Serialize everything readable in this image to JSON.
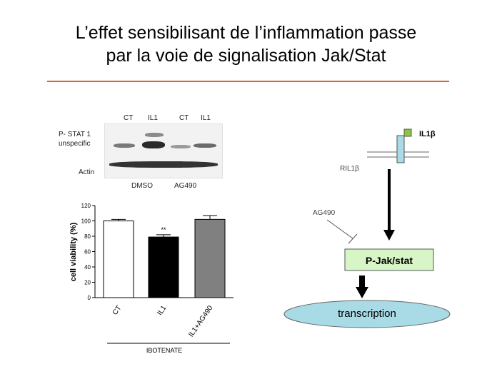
{
  "slide": {
    "title_line1": "L’effet sensibilisant de l’inflammation passe",
    "title_line2": "par la voie de signalisation Jak/Stat",
    "accent_color": "#e8602e"
  },
  "western_blot": {
    "lane_labels": [
      "CT",
      "IL1",
      "CT",
      "IL1"
    ],
    "row_labels": [
      "P- STAT 1",
      "unspecific",
      "Actin"
    ],
    "group_labels": [
      "DMSO",
      "AG490"
    ]
  },
  "chart_data": {
    "type": "bar",
    "categories": [
      "CT",
      "IL1",
      "IL1+AG490"
    ],
    "values": [
      100,
      79,
      102
    ],
    "errors": [
      2,
      3,
      5
    ],
    "colors": [
      "#ffffff",
      "#000000",
      "#808080"
    ],
    "ylabel": "cell viability (%)",
    "ylim": [
      0,
      120
    ],
    "yticks": [
      0,
      20,
      40,
      60,
      80,
      100,
      120
    ],
    "significance": [
      {
        "category": "IL1",
        "label": "**"
      }
    ],
    "group_label": "IBOTENATE"
  },
  "pathway": {
    "ligand": "IL1β",
    "receptor": "RIL1β",
    "inhibitor": "AG490",
    "kinase": "P-Jak/stat",
    "output": "transcription"
  }
}
